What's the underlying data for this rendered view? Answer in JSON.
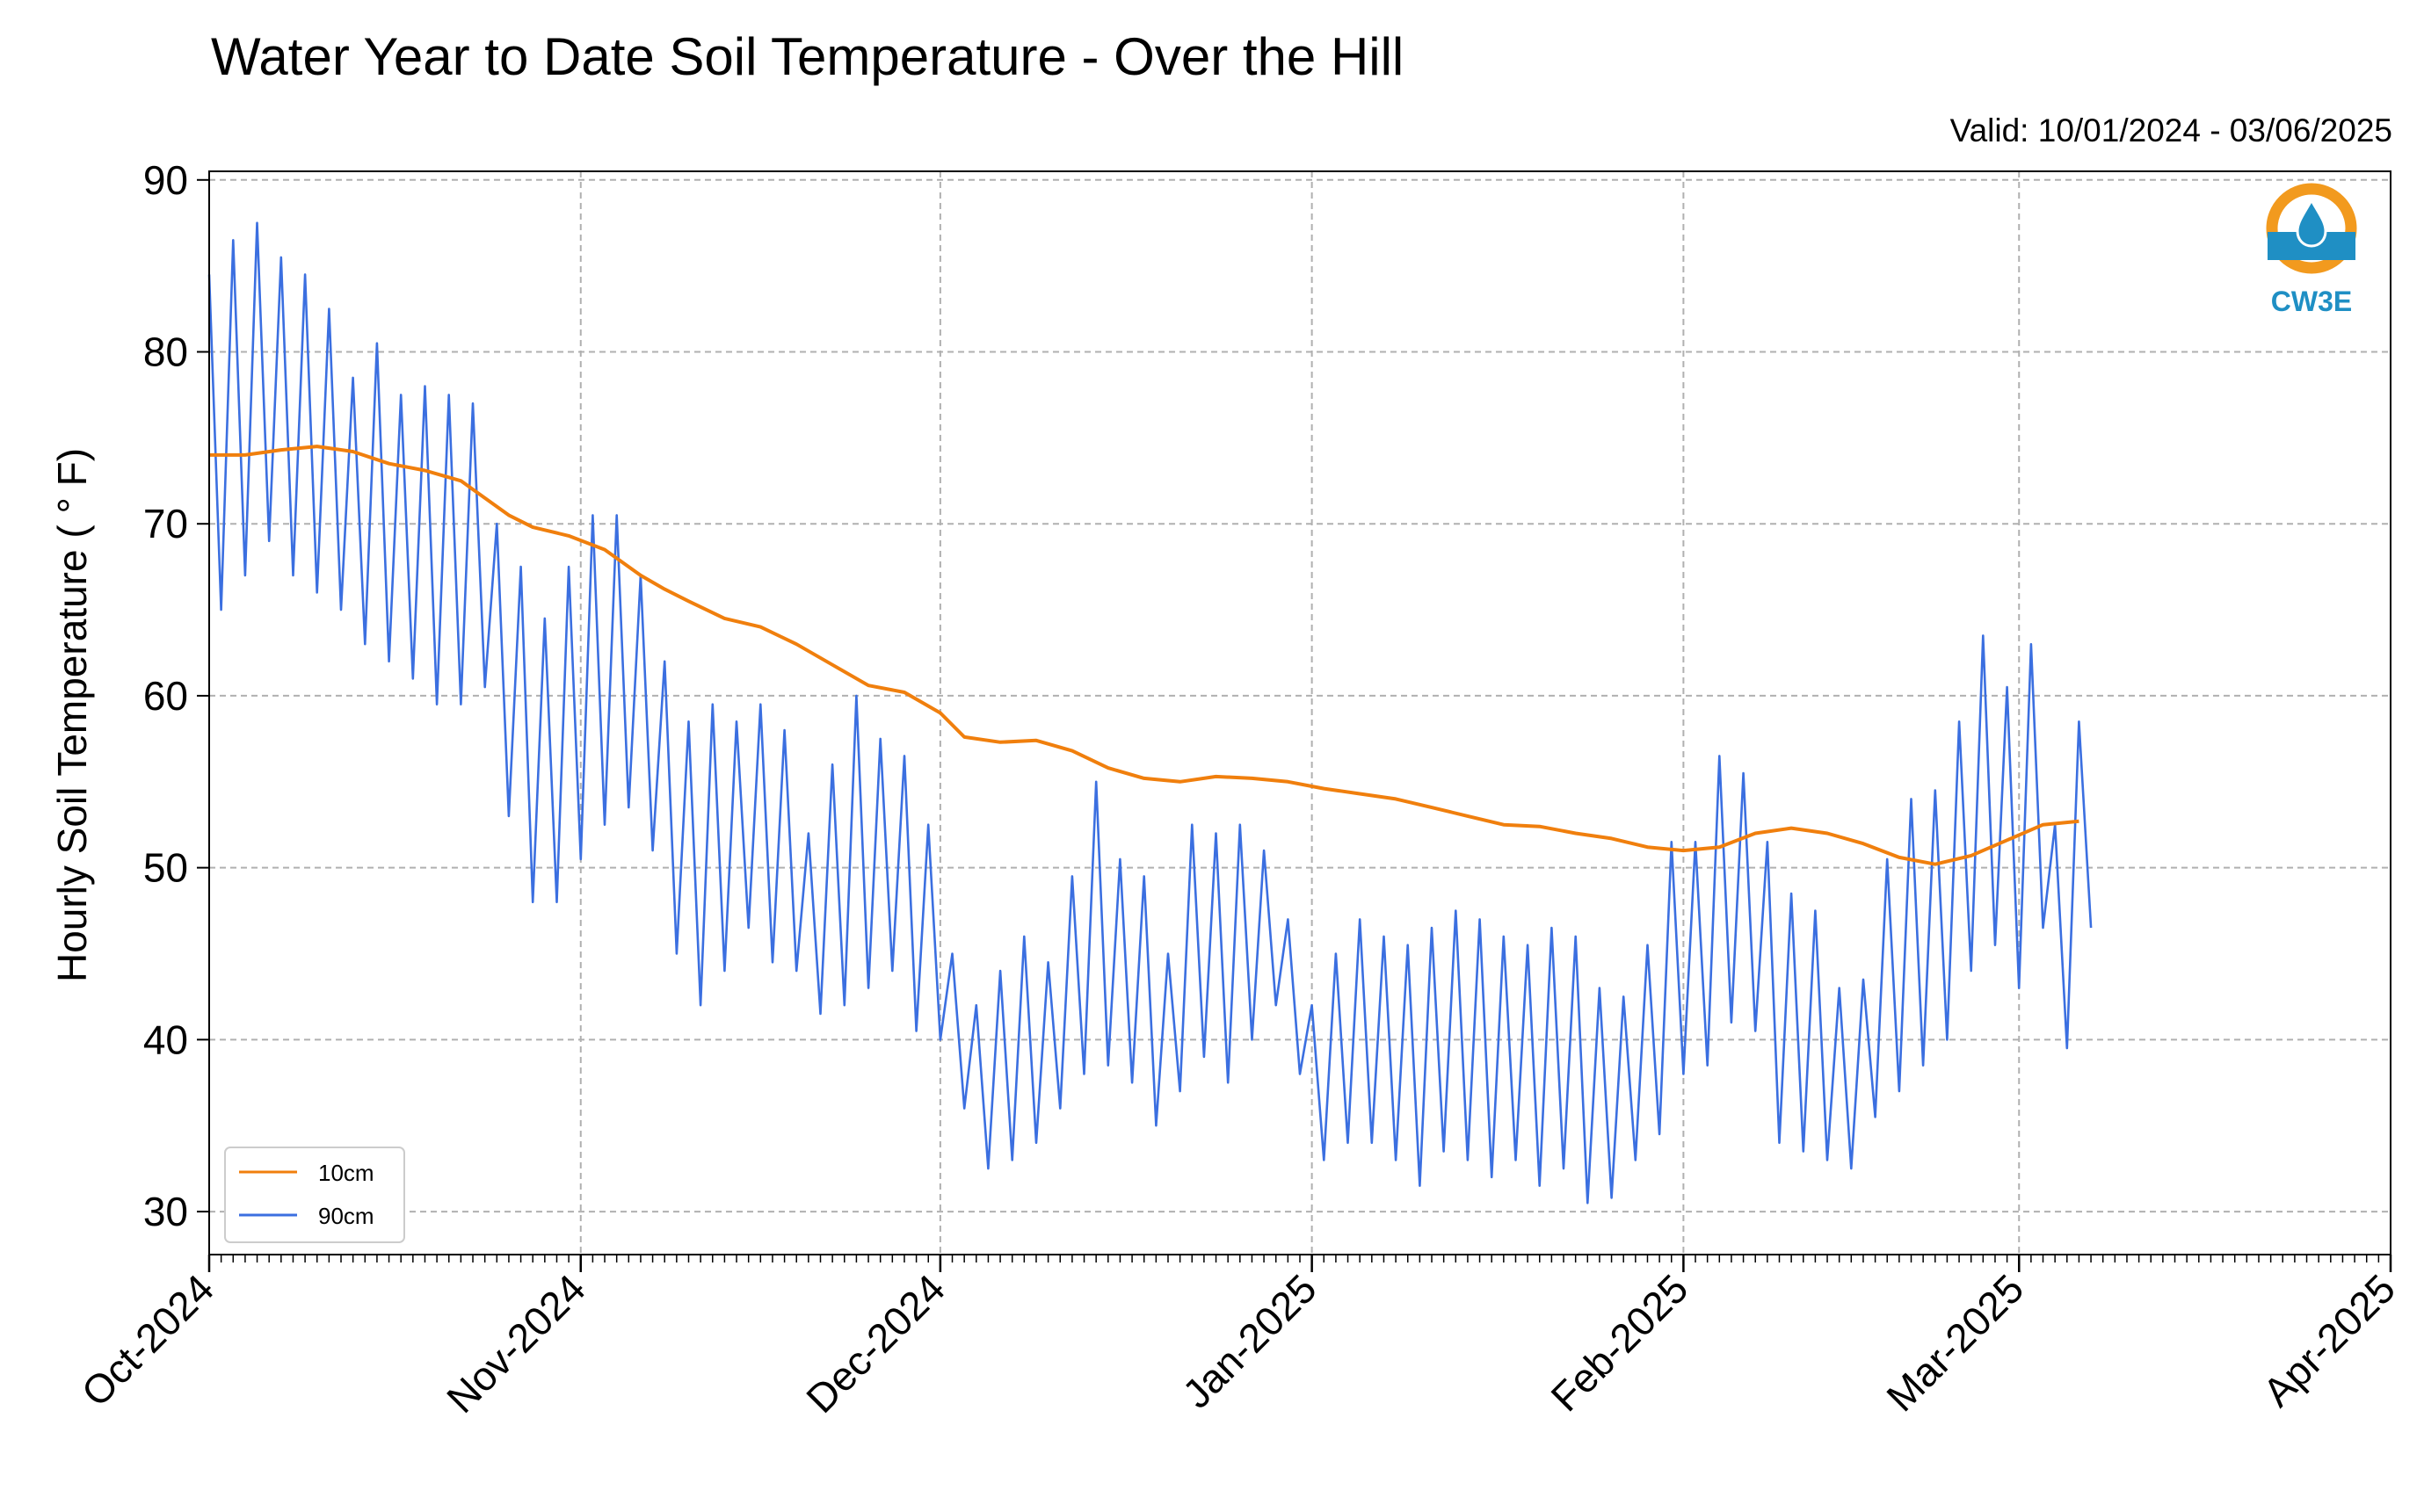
{
  "header": {
    "title": "Water Year to Date Soil Temperature - Over the Hill",
    "valid": "Valid: 10/01/2024 - 03/06/2025"
  },
  "logo": {
    "text": "CW3E",
    "icon": "water-drop-sun-icon",
    "colors": {
      "ring": "#f29a1e",
      "blue": "#1f8fc4"
    }
  },
  "chart_data": {
    "type": "line",
    "title": "Water Year to Date Soil Temperature - Over the Hill",
    "ylabel": "Hourly Soil Temperature ( ° F)",
    "xlabel": "",
    "ylim": [
      27.5,
      90.5
    ],
    "xlim": [
      "2024-10-01",
      "2025-04-01"
    ],
    "yticks": [
      30,
      40,
      50,
      60,
      70,
      80,
      90
    ],
    "xticks": [
      {
        "date": "2024-10-01",
        "label": "Oct-2024"
      },
      {
        "date": "2024-11-01",
        "label": "Nov-2024"
      },
      {
        "date": "2024-12-01",
        "label": "Dec-2024"
      },
      {
        "date": "2025-01-01",
        "label": "Jan-2025"
      },
      {
        "date": "2025-02-01",
        "label": "Feb-2025"
      },
      {
        "date": "2025-03-01",
        "label": "Mar-2025"
      },
      {
        "date": "2025-04-01",
        "label": "Apr-2025"
      }
    ],
    "grid": true,
    "legend": {
      "position": "lower-left"
    },
    "series": [
      {
        "name": "10cm",
        "color": "#f07f0d",
        "points": [
          [
            "2024-10-01",
            74.0
          ],
          [
            "2024-10-04",
            74.0
          ],
          [
            "2024-10-07",
            74.3
          ],
          [
            "2024-10-10",
            74.5
          ],
          [
            "2024-10-13",
            74.2
          ],
          [
            "2024-10-16",
            73.5
          ],
          [
            "2024-10-19",
            73.1
          ],
          [
            "2024-10-22",
            72.5
          ],
          [
            "2024-10-24",
            71.5
          ],
          [
            "2024-10-26",
            70.5
          ],
          [
            "2024-10-28",
            69.8
          ],
          [
            "2024-10-31",
            69.3
          ],
          [
            "2024-11-03",
            68.5
          ],
          [
            "2024-11-06",
            67.0
          ],
          [
            "2024-11-08",
            66.2
          ],
          [
            "2024-11-10",
            65.5
          ],
          [
            "2024-11-13",
            64.5
          ],
          [
            "2024-11-16",
            64.0
          ],
          [
            "2024-11-19",
            63.0
          ],
          [
            "2024-11-22",
            61.8
          ],
          [
            "2024-11-25",
            60.6
          ],
          [
            "2024-11-28",
            60.2
          ],
          [
            "2024-12-01",
            59.0
          ],
          [
            "2024-12-03",
            57.6
          ],
          [
            "2024-12-06",
            57.3
          ],
          [
            "2024-12-09",
            57.4
          ],
          [
            "2024-12-12",
            56.8
          ],
          [
            "2024-12-15",
            55.8
          ],
          [
            "2024-12-18",
            55.2
          ],
          [
            "2024-12-21",
            55.0
          ],
          [
            "2024-12-24",
            55.3
          ],
          [
            "2024-12-27",
            55.2
          ],
          [
            "2024-12-30",
            55.0
          ],
          [
            "2025-01-02",
            54.6
          ],
          [
            "2025-01-05",
            54.3
          ],
          [
            "2025-01-08",
            54.0
          ],
          [
            "2025-01-11",
            53.5
          ],
          [
            "2025-01-14",
            53.0
          ],
          [
            "2025-01-17",
            52.5
          ],
          [
            "2025-01-20",
            52.4
          ],
          [
            "2025-01-23",
            52.0
          ],
          [
            "2025-01-26",
            51.7
          ],
          [
            "2025-01-29",
            51.2
          ],
          [
            "2025-02-01",
            51.0
          ],
          [
            "2025-02-04",
            51.2
          ],
          [
            "2025-02-07",
            52.0
          ],
          [
            "2025-02-10",
            52.3
          ],
          [
            "2025-02-13",
            52.0
          ],
          [
            "2025-02-16",
            51.4
          ],
          [
            "2025-02-19",
            50.6
          ],
          [
            "2025-02-22",
            50.2
          ],
          [
            "2025-02-25",
            50.7
          ],
          [
            "2025-02-28",
            51.6
          ],
          [
            "2025-03-03",
            52.5
          ],
          [
            "2025-03-06",
            52.7
          ]
        ]
      },
      {
        "name": "90cm",
        "color": "#3b6fe0",
        "points": [
          [
            "2024-10-01",
            84.5
          ],
          [
            "2024-10-02",
            65.0
          ],
          [
            "2024-10-03",
            86.5
          ],
          [
            "2024-10-04",
            67.0
          ],
          [
            "2024-10-05",
            87.5
          ],
          [
            "2024-10-06",
            69.0
          ],
          [
            "2024-10-07",
            85.5
          ],
          [
            "2024-10-08",
            67.0
          ],
          [
            "2024-10-09",
            84.5
          ],
          [
            "2024-10-10",
            66.0
          ],
          [
            "2024-10-11",
            82.5
          ],
          [
            "2024-10-12",
            65.0
          ],
          [
            "2024-10-13",
            78.5
          ],
          [
            "2024-10-14",
            63.0
          ],
          [
            "2024-10-15",
            80.5
          ],
          [
            "2024-10-16",
            62.0
          ],
          [
            "2024-10-17",
            77.5
          ],
          [
            "2024-10-18",
            61.0
          ],
          [
            "2024-10-19",
            78.0
          ],
          [
            "2024-10-20",
            59.5
          ],
          [
            "2024-10-21",
            77.5
          ],
          [
            "2024-10-22",
            59.5
          ],
          [
            "2024-10-23",
            77.0
          ],
          [
            "2024-10-24",
            60.5
          ],
          [
            "2024-10-25",
            70.0
          ],
          [
            "2024-10-26",
            53.0
          ],
          [
            "2024-10-27",
            67.5
          ],
          [
            "2024-10-28",
            48.0
          ],
          [
            "2024-10-29",
            64.5
          ],
          [
            "2024-10-30",
            48.0
          ],
          [
            "2024-10-31",
            67.5
          ],
          [
            "2024-11-01",
            50.5
          ],
          [
            "2024-11-02",
            70.5
          ],
          [
            "2024-11-03",
            52.5
          ],
          [
            "2024-11-04",
            70.5
          ],
          [
            "2024-11-05",
            53.5
          ],
          [
            "2024-11-06",
            67.0
          ],
          [
            "2024-11-07",
            51.0
          ],
          [
            "2024-11-08",
            62.0
          ],
          [
            "2024-11-09",
            45.0
          ],
          [
            "2024-11-10",
            58.5
          ],
          [
            "2024-11-11",
            42.0
          ],
          [
            "2024-11-12",
            59.5
          ],
          [
            "2024-11-13",
            44.0
          ],
          [
            "2024-11-14",
            58.5
          ],
          [
            "2024-11-15",
            46.5
          ],
          [
            "2024-11-16",
            59.5
          ],
          [
            "2024-11-17",
            44.5
          ],
          [
            "2024-11-18",
            58.0
          ],
          [
            "2024-11-19",
            44.0
          ],
          [
            "2024-11-20",
            52.0
          ],
          [
            "2024-11-21",
            41.5
          ],
          [
            "2024-11-22",
            56.0
          ],
          [
            "2024-11-23",
            42.0
          ],
          [
            "2024-11-24",
            60.0
          ],
          [
            "2024-11-25",
            43.0
          ],
          [
            "2024-11-26",
            57.5
          ],
          [
            "2024-11-27",
            44.0
          ],
          [
            "2024-11-28",
            56.5
          ],
          [
            "2024-11-29",
            40.5
          ],
          [
            "2024-11-30",
            52.5
          ],
          [
            "2024-12-01",
            40.0
          ],
          [
            "2024-12-02",
            45.0
          ],
          [
            "2024-12-03",
            36.0
          ],
          [
            "2024-12-04",
            42.0
          ],
          [
            "2024-12-05",
            32.5
          ],
          [
            "2024-12-06",
            44.0
          ],
          [
            "2024-12-07",
            33.0
          ],
          [
            "2024-12-08",
            46.0
          ],
          [
            "2024-12-09",
            34.0
          ],
          [
            "2024-12-10",
            44.5
          ],
          [
            "2024-12-11",
            36.0
          ],
          [
            "2024-12-12",
            49.5
          ],
          [
            "2024-12-13",
            38.0
          ],
          [
            "2024-12-14",
            55.0
          ],
          [
            "2024-12-15",
            38.5
          ],
          [
            "2024-12-16",
            50.5
          ],
          [
            "2024-12-17",
            37.5
          ],
          [
            "2024-12-18",
            49.5
          ],
          [
            "2024-12-19",
            35.0
          ],
          [
            "2024-12-20",
            45.0
          ],
          [
            "2024-12-21",
            37.0
          ],
          [
            "2024-12-22",
            52.5
          ],
          [
            "2024-12-23",
            39.0
          ],
          [
            "2024-12-24",
            52.0
          ],
          [
            "2024-12-25",
            37.5
          ],
          [
            "2024-12-26",
            52.5
          ],
          [
            "2024-12-27",
            40.0
          ],
          [
            "2024-12-28",
            51.0
          ],
          [
            "2024-12-29",
            42.0
          ],
          [
            "2024-12-30",
            47.0
          ],
          [
            "2024-12-31",
            38.0
          ],
          [
            "2025-01-01",
            42.0
          ],
          [
            "2025-01-02",
            33.0
          ],
          [
            "2025-01-03",
            45.0
          ],
          [
            "2025-01-04",
            34.0
          ],
          [
            "2025-01-05",
            47.0
          ],
          [
            "2025-01-06",
            34.0
          ],
          [
            "2025-01-07",
            46.0
          ],
          [
            "2025-01-08",
            33.0
          ],
          [
            "2025-01-09",
            45.5
          ],
          [
            "2025-01-10",
            31.5
          ],
          [
            "2025-01-11",
            46.5
          ],
          [
            "2025-01-12",
            33.5
          ],
          [
            "2025-01-13",
            47.5
          ],
          [
            "2025-01-14",
            33.0
          ],
          [
            "2025-01-15",
            47.0
          ],
          [
            "2025-01-16",
            32.0
          ],
          [
            "2025-01-17",
            46.0
          ],
          [
            "2025-01-18",
            33.0
          ],
          [
            "2025-01-19",
            45.5
          ],
          [
            "2025-01-20",
            31.5
          ],
          [
            "2025-01-21",
            46.5
          ],
          [
            "2025-01-22",
            32.5
          ],
          [
            "2025-01-23",
            46.0
          ],
          [
            "2025-01-24",
            30.5
          ],
          [
            "2025-01-25",
            43.0
          ],
          [
            "2025-01-26",
            30.8
          ],
          [
            "2025-01-27",
            42.5
          ],
          [
            "2025-01-28",
            33.0
          ],
          [
            "2025-01-29",
            45.5
          ],
          [
            "2025-01-30",
            34.5
          ],
          [
            "2025-01-31",
            51.5
          ],
          [
            "2025-02-01",
            38.0
          ],
          [
            "2025-02-02",
            51.5
          ],
          [
            "2025-02-03",
            38.5
          ],
          [
            "2025-02-04",
            56.5
          ],
          [
            "2025-02-05",
            41.0
          ],
          [
            "2025-02-06",
            55.5
          ],
          [
            "2025-02-07",
            40.5
          ],
          [
            "2025-02-08",
            51.5
          ],
          [
            "2025-02-09",
            34.0
          ],
          [
            "2025-02-10",
            48.5
          ],
          [
            "2025-02-11",
            33.5
          ],
          [
            "2025-02-12",
            47.5
          ],
          [
            "2025-02-13",
            33.0
          ],
          [
            "2025-02-14",
            43.0
          ],
          [
            "2025-02-15",
            32.5
          ],
          [
            "2025-02-16",
            43.5
          ],
          [
            "2025-02-17",
            35.5
          ],
          [
            "2025-02-18",
            50.5
          ],
          [
            "2025-02-19",
            37.0
          ],
          [
            "2025-02-20",
            54.0
          ],
          [
            "2025-02-21",
            38.5
          ],
          [
            "2025-02-22",
            54.5
          ],
          [
            "2025-02-23",
            40.0
          ],
          [
            "2025-02-24",
            58.5
          ],
          [
            "2025-02-25",
            44.0
          ],
          [
            "2025-02-26",
            63.5
          ],
          [
            "2025-02-27",
            45.5
          ],
          [
            "2025-02-28",
            60.5
          ],
          [
            "2025-03-01",
            43.0
          ],
          [
            "2025-03-02",
            63.0
          ],
          [
            "2025-03-03",
            46.5
          ],
          [
            "2025-03-04",
            52.5
          ],
          [
            "2025-03-05",
            39.5
          ],
          [
            "2025-03-06",
            58.5
          ],
          [
            "2025-03-07",
            46.5
          ]
        ]
      }
    ]
  }
}
